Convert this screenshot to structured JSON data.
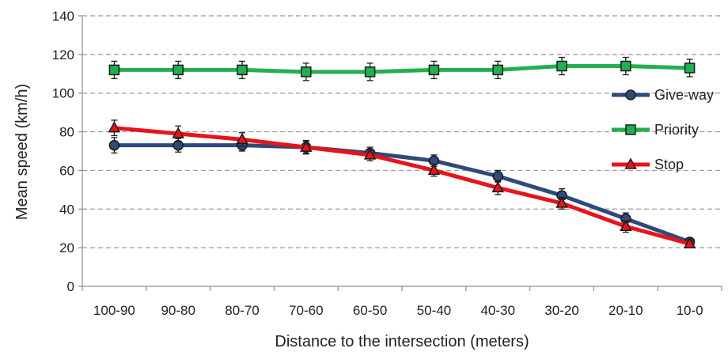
{
  "chart_data": {
    "type": "line",
    "title": "",
    "xlabel": "Distance to the intersection (meters)",
    "ylabel": "Mean speed (km/h)",
    "ylim": [
      0,
      140
    ],
    "yticks": [
      0,
      20,
      40,
      60,
      80,
      100,
      120,
      140
    ],
    "grid": "horizontal dashed",
    "legend_position": "right",
    "categories": [
      "100-90",
      "90-80",
      "80-70",
      "70-60",
      "60-50",
      "50-40",
      "40-30",
      "30-20",
      "20-10",
      "10-0"
    ],
    "series": [
      {
        "name": "Give-way",
        "color": "#2e4a7a",
        "marker": "circle",
        "values": [
          73,
          73,
          73,
          72,
          69,
          65,
          57,
          47,
          35,
          23
        ],
        "error": [
          4,
          3.5,
          3,
          3,
          3,
          3,
          3,
          3.5,
          3,
          2
        ]
      },
      {
        "name": "Priority",
        "color": "#20b050",
        "marker": "square",
        "values": [
          112,
          112,
          112,
          111,
          111,
          112,
          112,
          114,
          114,
          113
        ],
        "error": [
          4.5,
          4.5,
          4.5,
          4.5,
          4.5,
          4.5,
          4.5,
          4.5,
          4.5,
          4.5
        ]
      },
      {
        "name": "Stop",
        "color": "#e8131b",
        "marker": "triangle",
        "values": [
          82,
          79,
          76,
          72,
          68,
          60,
          51,
          43,
          31,
          22
        ],
        "error": [
          4,
          4,
          3.5,
          3.5,
          3,
          3,
          3.5,
          3,
          3,
          2
        ]
      }
    ]
  }
}
